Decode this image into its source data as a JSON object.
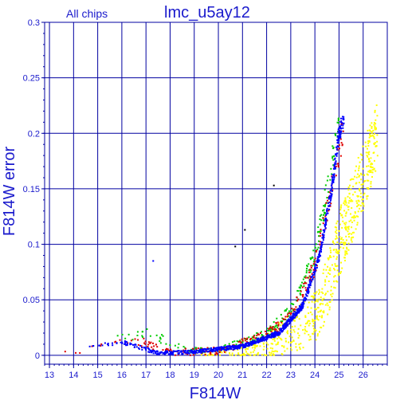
{
  "chart_data": {
    "type": "scatter",
    "title": "lmc_u5ay12",
    "subtitle": "All chips",
    "xlabel": "F814W",
    "ylabel": "F814W error",
    "xlim": [
      12.8,
      27.0
    ],
    "ylim": [
      -0.008,
      0.3
    ],
    "xticks": [
      13,
      14,
      15,
      16,
      17,
      18,
      19,
      20,
      21,
      22,
      23,
      24,
      25,
      26
    ],
    "yticks": [
      0,
      0.05,
      0.1,
      0.15,
      0.2,
      0.25,
      0.3
    ],
    "ytick_labels": [
      "0",
      "0.05",
      "0.1",
      "0.15",
      "0.2",
      "0.25",
      "0.3"
    ],
    "grid": true,
    "colors": {
      "axis": "#0000a0",
      "grid": "#0000a0",
      "text": "#1a1acc",
      "chip1": "#ffff00",
      "chip2": "#00cc00",
      "chip3": "#dd0000",
      "chip4": "#0000ff",
      "outlier": "#000000"
    },
    "series": [
      {
        "color": "#ffff00",
        "trend": [
          [
            18.5,
            0.001
          ],
          [
            20.0,
            0.002
          ],
          [
            21.0,
            0.004
          ],
          [
            22.0,
            0.01
          ],
          [
            23.0,
            0.02
          ],
          [
            24.0,
            0.035
          ],
          [
            24.5,
            0.06
          ],
          [
            25.0,
            0.1
          ],
          [
            25.5,
            0.13
          ],
          [
            26.0,
            0.16
          ],
          [
            26.6,
            0.2
          ]
        ],
        "spread": "wide"
      },
      {
        "color": "#00cc00",
        "trend": [
          [
            15.3,
            0.012
          ],
          [
            16.0,
            0.015
          ],
          [
            17.0,
            0.02
          ],
          [
            19.0,
            0.004
          ],
          [
            21.0,
            0.01
          ],
          [
            22.0,
            0.02
          ],
          [
            23.0,
            0.04
          ],
          [
            24.0,
            0.09
          ],
          [
            24.6,
            0.16
          ],
          [
            25.0,
            0.21
          ]
        ],
        "spread": "medium"
      },
      {
        "color": "#dd0000",
        "trend": [
          [
            13.4,
            0.003
          ],
          [
            15.0,
            0.007
          ],
          [
            16.5,
            0.015
          ],
          [
            18.0,
            0.002
          ],
          [
            20.0,
            0.004
          ],
          [
            22.0,
            0.018
          ],
          [
            23.0,
            0.035
          ],
          [
            24.0,
            0.08
          ],
          [
            24.8,
            0.16
          ],
          [
            25.2,
            0.21
          ]
        ],
        "spread": "medium"
      },
      {
        "color": "#0000ff",
        "trend": [
          [
            14.0,
            0.005
          ],
          [
            16.0,
            0.012
          ],
          [
            17.5,
            0.002
          ],
          [
            19.0,
            0.003
          ],
          [
            21.0,
            0.008
          ],
          [
            22.5,
            0.02
          ],
          [
            23.5,
            0.045
          ],
          [
            24.2,
            0.09
          ],
          [
            24.7,
            0.15
          ],
          [
            25.0,
            0.2
          ],
          [
            25.2,
            0.215
          ]
        ],
        "spread": "narrow"
      }
    ],
    "outliers": [
      {
        "x": 17.3,
        "y": 0.085,
        "color": "#0000ff"
      },
      {
        "x": 22.3,
        "y": 0.153,
        "color": "#000000"
      },
      {
        "x": 21.1,
        "y": 0.113,
        "color": "#000000"
      },
      {
        "x": 20.7,
        "y": 0.098,
        "color": "#000000"
      }
    ]
  }
}
